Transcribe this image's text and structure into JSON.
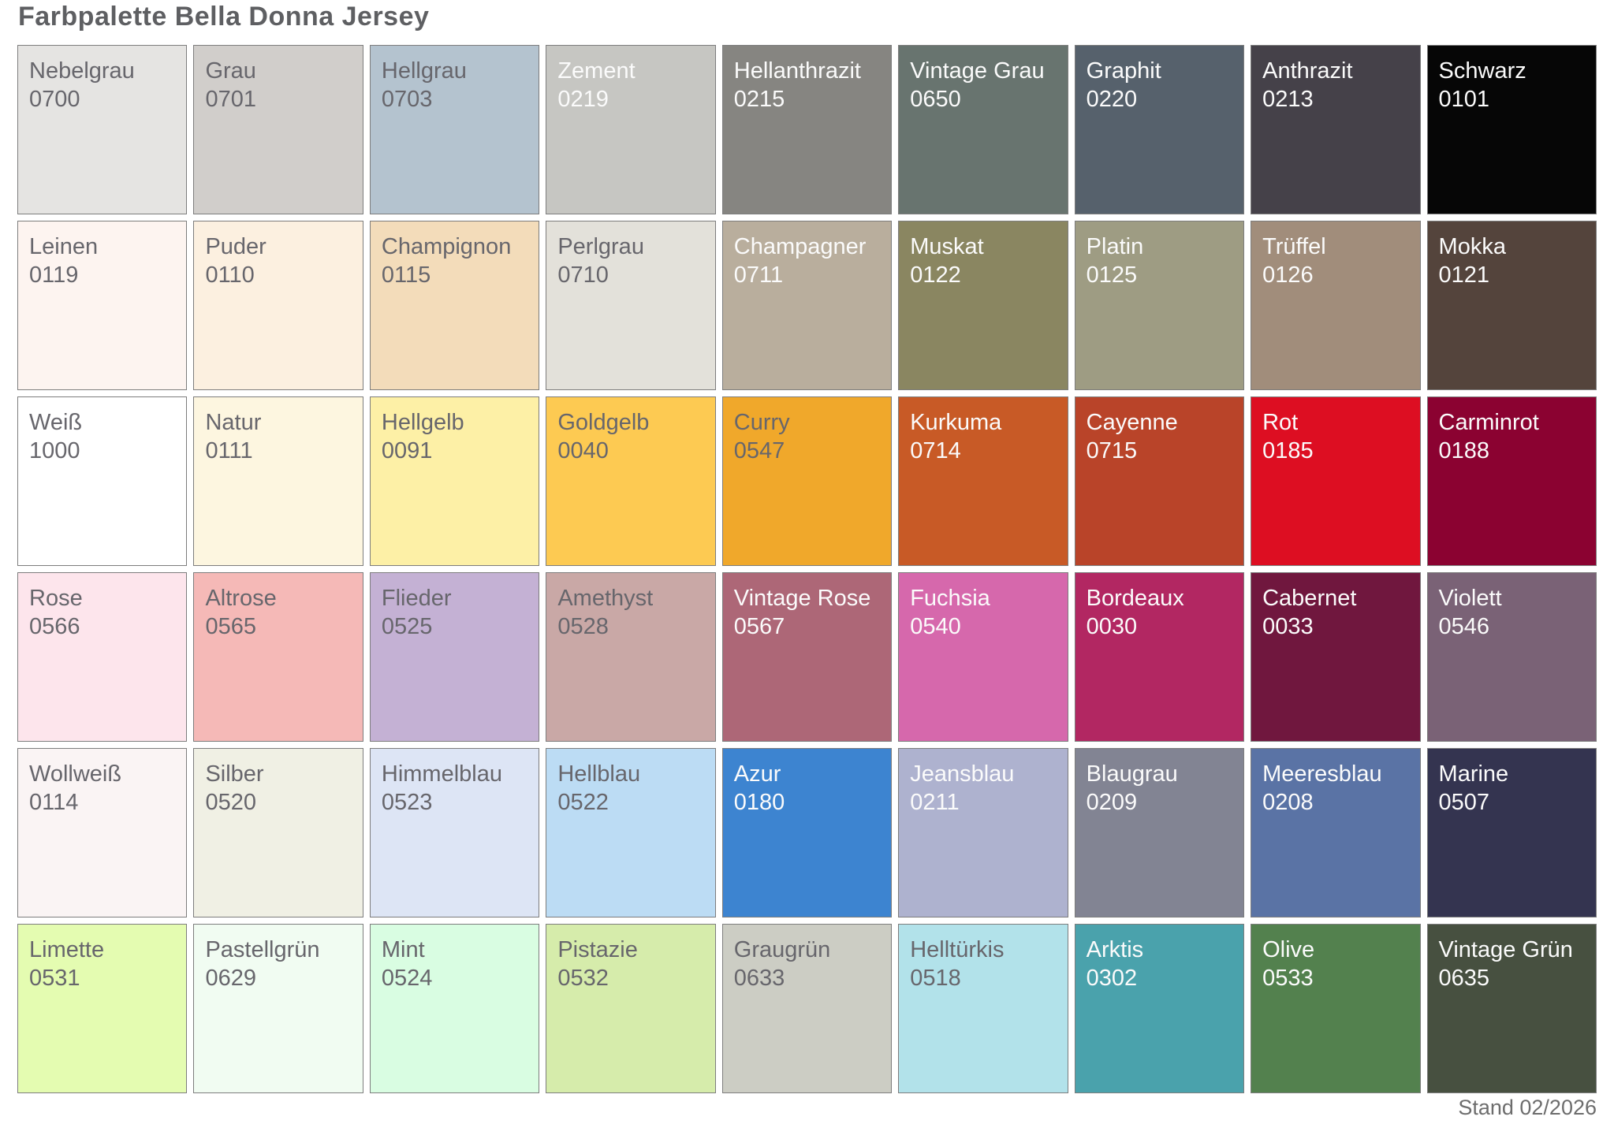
{
  "page": {
    "title": "Farbpalette Bella Donna Jersey",
    "footer": "Stand 02/2026",
    "background_color": "#ffffff",
    "title_color": "#5e5f62",
    "label_dark_color": "#67666c",
    "label_light_color": "#fbfbfb",
    "swatch_border_color": "#7d7d7d"
  },
  "palette": {
    "columns": 9,
    "rows": 6,
    "swatches": [
      {
        "name": "Nebelgrau",
        "code": "0700",
        "bg": "#e5e4e2",
        "text": "dark"
      },
      {
        "name": "Grau",
        "code": "0701",
        "bg": "#d1cecb",
        "text": "dark"
      },
      {
        "name": "Hellgrau",
        "code": "0703",
        "bg": "#b4c3cf",
        "text": "dark"
      },
      {
        "name": "Zement",
        "code": "0219",
        "bg": "#c6c6c2",
        "text": "light"
      },
      {
        "name": "Hellanthrazit",
        "code": "0215",
        "bg": "#868581",
        "text": "light"
      },
      {
        "name": "Vintage Grau",
        "code": "0650",
        "bg": "#68746f",
        "text": "light"
      },
      {
        "name": "Graphit",
        "code": "0220",
        "bg": "#56616c",
        "text": "light"
      },
      {
        "name": "Anthrazit",
        "code": "0213",
        "bg": "#454149",
        "text": "light"
      },
      {
        "name": "Schwarz",
        "code": "0101",
        "bg": "#060606",
        "text": "light"
      },
      {
        "name": "Leinen",
        "code": "0119",
        "bg": "#fdf4f0",
        "text": "dark"
      },
      {
        "name": "Puder",
        "code": "0110",
        "bg": "#fcf0e0",
        "text": "dark"
      },
      {
        "name": "Champignon",
        "code": "0115",
        "bg": "#f3dcba",
        "text": "dark"
      },
      {
        "name": "Perlgrau",
        "code": "0710",
        "bg": "#e3e1da",
        "text": "dark"
      },
      {
        "name": "Champagner",
        "code": "0711",
        "bg": "#b9ae9d",
        "text": "light"
      },
      {
        "name": "Muskat",
        "code": "0122",
        "bg": "#8a8661",
        "text": "light"
      },
      {
        "name": "Platin",
        "code": "0125",
        "bg": "#9e9c83",
        "text": "light"
      },
      {
        "name": "Trüffel",
        "code": "0126",
        "bg": "#a18d7b",
        "text": "light"
      },
      {
        "name": "Mokka",
        "code": "0121",
        "bg": "#54443c",
        "text": "light"
      },
      {
        "name": "Weiß",
        "code": "1000",
        "bg": "#ffffff",
        "text": "dark"
      },
      {
        "name": "Natur",
        "code": "0111",
        "bg": "#fdf6e0",
        "text": "dark"
      },
      {
        "name": "Hellgelb",
        "code": "0091",
        "bg": "#fdf0a6",
        "text": "dark"
      },
      {
        "name": "Goldgelb",
        "code": "0040",
        "bg": "#fdca52",
        "text": "dark"
      },
      {
        "name": "Curry",
        "code": "0547",
        "bg": "#f0a82b",
        "text": "dark"
      },
      {
        "name": "Kurkuma",
        "code": "0714",
        "bg": "#c85a26",
        "text": "light"
      },
      {
        "name": "Cayenne",
        "code": "0715",
        "bg": "#b94429",
        "text": "light"
      },
      {
        "name": "Rot",
        "code": "0185",
        "bg": "#dd0e22",
        "text": "light"
      },
      {
        "name": "Carminrot",
        "code": "0188",
        "bg": "#8b0231",
        "text": "light"
      },
      {
        "name": "Rose",
        "code": "0566",
        "bg": "#fde5ec",
        "text": "dark"
      },
      {
        "name": "Altrose",
        "code": "0565",
        "bg": "#f5b9b7",
        "text": "dark"
      },
      {
        "name": "Flieder",
        "code": "0525",
        "bg": "#c4b1d4",
        "text": "dark"
      },
      {
        "name": "Amethyst",
        "code": "0528",
        "bg": "#c9a8a6",
        "text": "dark"
      },
      {
        "name": "Vintage Rose",
        "code": "0567",
        "bg": "#ad6777",
        "text": "light"
      },
      {
        "name": "Fuchsia",
        "code": "0540",
        "bg": "#d668ac",
        "text": "light"
      },
      {
        "name": "Bordeaux",
        "code": "0030",
        "bg": "#b22762",
        "text": "light"
      },
      {
        "name": "Cabernet",
        "code": "0033",
        "bg": "#70173e",
        "text": "light"
      },
      {
        "name": "Violett",
        "code": "0546",
        "bg": "#7a6276",
        "text": "light"
      },
      {
        "name": "Wollweiß",
        "code": "0114",
        "bg": "#faf4f4",
        "text": "dark"
      },
      {
        "name": "Silber",
        "code": "0520",
        "bg": "#f0f0e4",
        "text": "dark"
      },
      {
        "name": "Himmelblau",
        "code": "0523",
        "bg": "#dde5f5",
        "text": "dark"
      },
      {
        "name": "Hellblau",
        "code": "0522",
        "bg": "#bcdcf4",
        "text": "dark"
      },
      {
        "name": "Azur",
        "code": "0180",
        "bg": "#3d84d0",
        "text": "light"
      },
      {
        "name": "Jeansblau",
        "code": "0211",
        "bg": "#aeb2cf",
        "text": "light"
      },
      {
        "name": "Blaugrau",
        "code": "0209",
        "bg": "#828493",
        "text": "light"
      },
      {
        "name": "Meeresblau",
        "code": "0208",
        "bg": "#5a73a5",
        "text": "light"
      },
      {
        "name": "Marine",
        "code": "0507",
        "bg": "#343450",
        "text": "light"
      },
      {
        "name": "Limette",
        "code": "0531",
        "bg": "#e4fcb1",
        "text": "dark"
      },
      {
        "name": "Pastellgrün",
        "code": "0629",
        "bg": "#f1fcf2",
        "text": "dark"
      },
      {
        "name": "Mint",
        "code": "0524",
        "bg": "#d9fde2",
        "text": "dark"
      },
      {
        "name": "Pistazie",
        "code": "0532",
        "bg": "#d6ecab",
        "text": "dark"
      },
      {
        "name": "Graugrün",
        "code": "0633",
        "bg": "#cccdc4",
        "text": "dark"
      },
      {
        "name": "Helltürkis",
        "code": "0518",
        "bg": "#b2e2ea",
        "text": "dark"
      },
      {
        "name": "Arktis",
        "code": "0302",
        "bg": "#4aa2ac",
        "text": "light"
      },
      {
        "name": "Olive",
        "code": "0533",
        "bg": "#53814e",
        "text": "light"
      },
      {
        "name": "Vintage Grün",
        "code": "0635",
        "bg": "#475040",
        "text": "light"
      }
    ]
  }
}
